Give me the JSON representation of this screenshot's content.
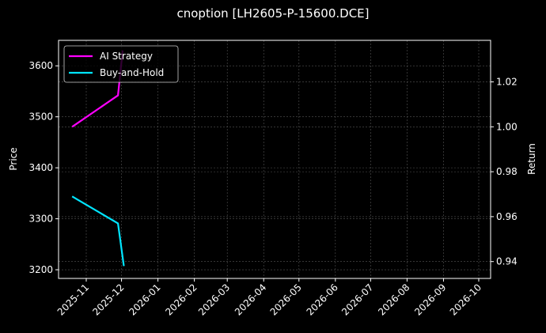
{
  "chart_data": {
    "type": "line",
    "title": "cnoption [LH2605-P-15600.DCE]",
    "xlabel": "",
    "ylabel": "Price",
    "y2label": "Return",
    "x_ticks": [
      "2025-11",
      "2025-12",
      "2026-01",
      "2026-02",
      "2026-03",
      "2026-04",
      "2026-05",
      "2026-06",
      "2026-07",
      "2026-08",
      "2026-09",
      "2026-10"
    ],
    "y_ticks": [
      3200,
      3300,
      3400,
      3500,
      3600
    ],
    "y2_ticks": [
      "0.94",
      "0.96",
      "0.98",
      "1.00",
      "1.02"
    ],
    "ylim": [
      3183,
      3650
    ],
    "y2lim": [
      0.9325,
      1.0385
    ],
    "grid": true,
    "legend_position": "upper left",
    "series": [
      {
        "name": "AI Strategy",
        "axis": "right",
        "color": "#ff00ff",
        "x": [
          "2025-10-20",
          "2025-11-28",
          "2025-12-02"
        ],
        "values": [
          1.0,
          1.014,
          1.034
        ]
      },
      {
        "name": "Buy-and-Hold",
        "axis": "right",
        "color": "#00e5ff",
        "x": [
          "2025-10-20",
          "2025-11-28",
          "2025-12-03"
        ],
        "values": [
          0.969,
          0.957,
          0.938
        ]
      }
    ]
  },
  "legend": [
    {
      "label": "AI Strategy",
      "color": "#ff00ff"
    },
    {
      "label": "Buy-and-Hold",
      "color": "#00e5ff"
    }
  ]
}
